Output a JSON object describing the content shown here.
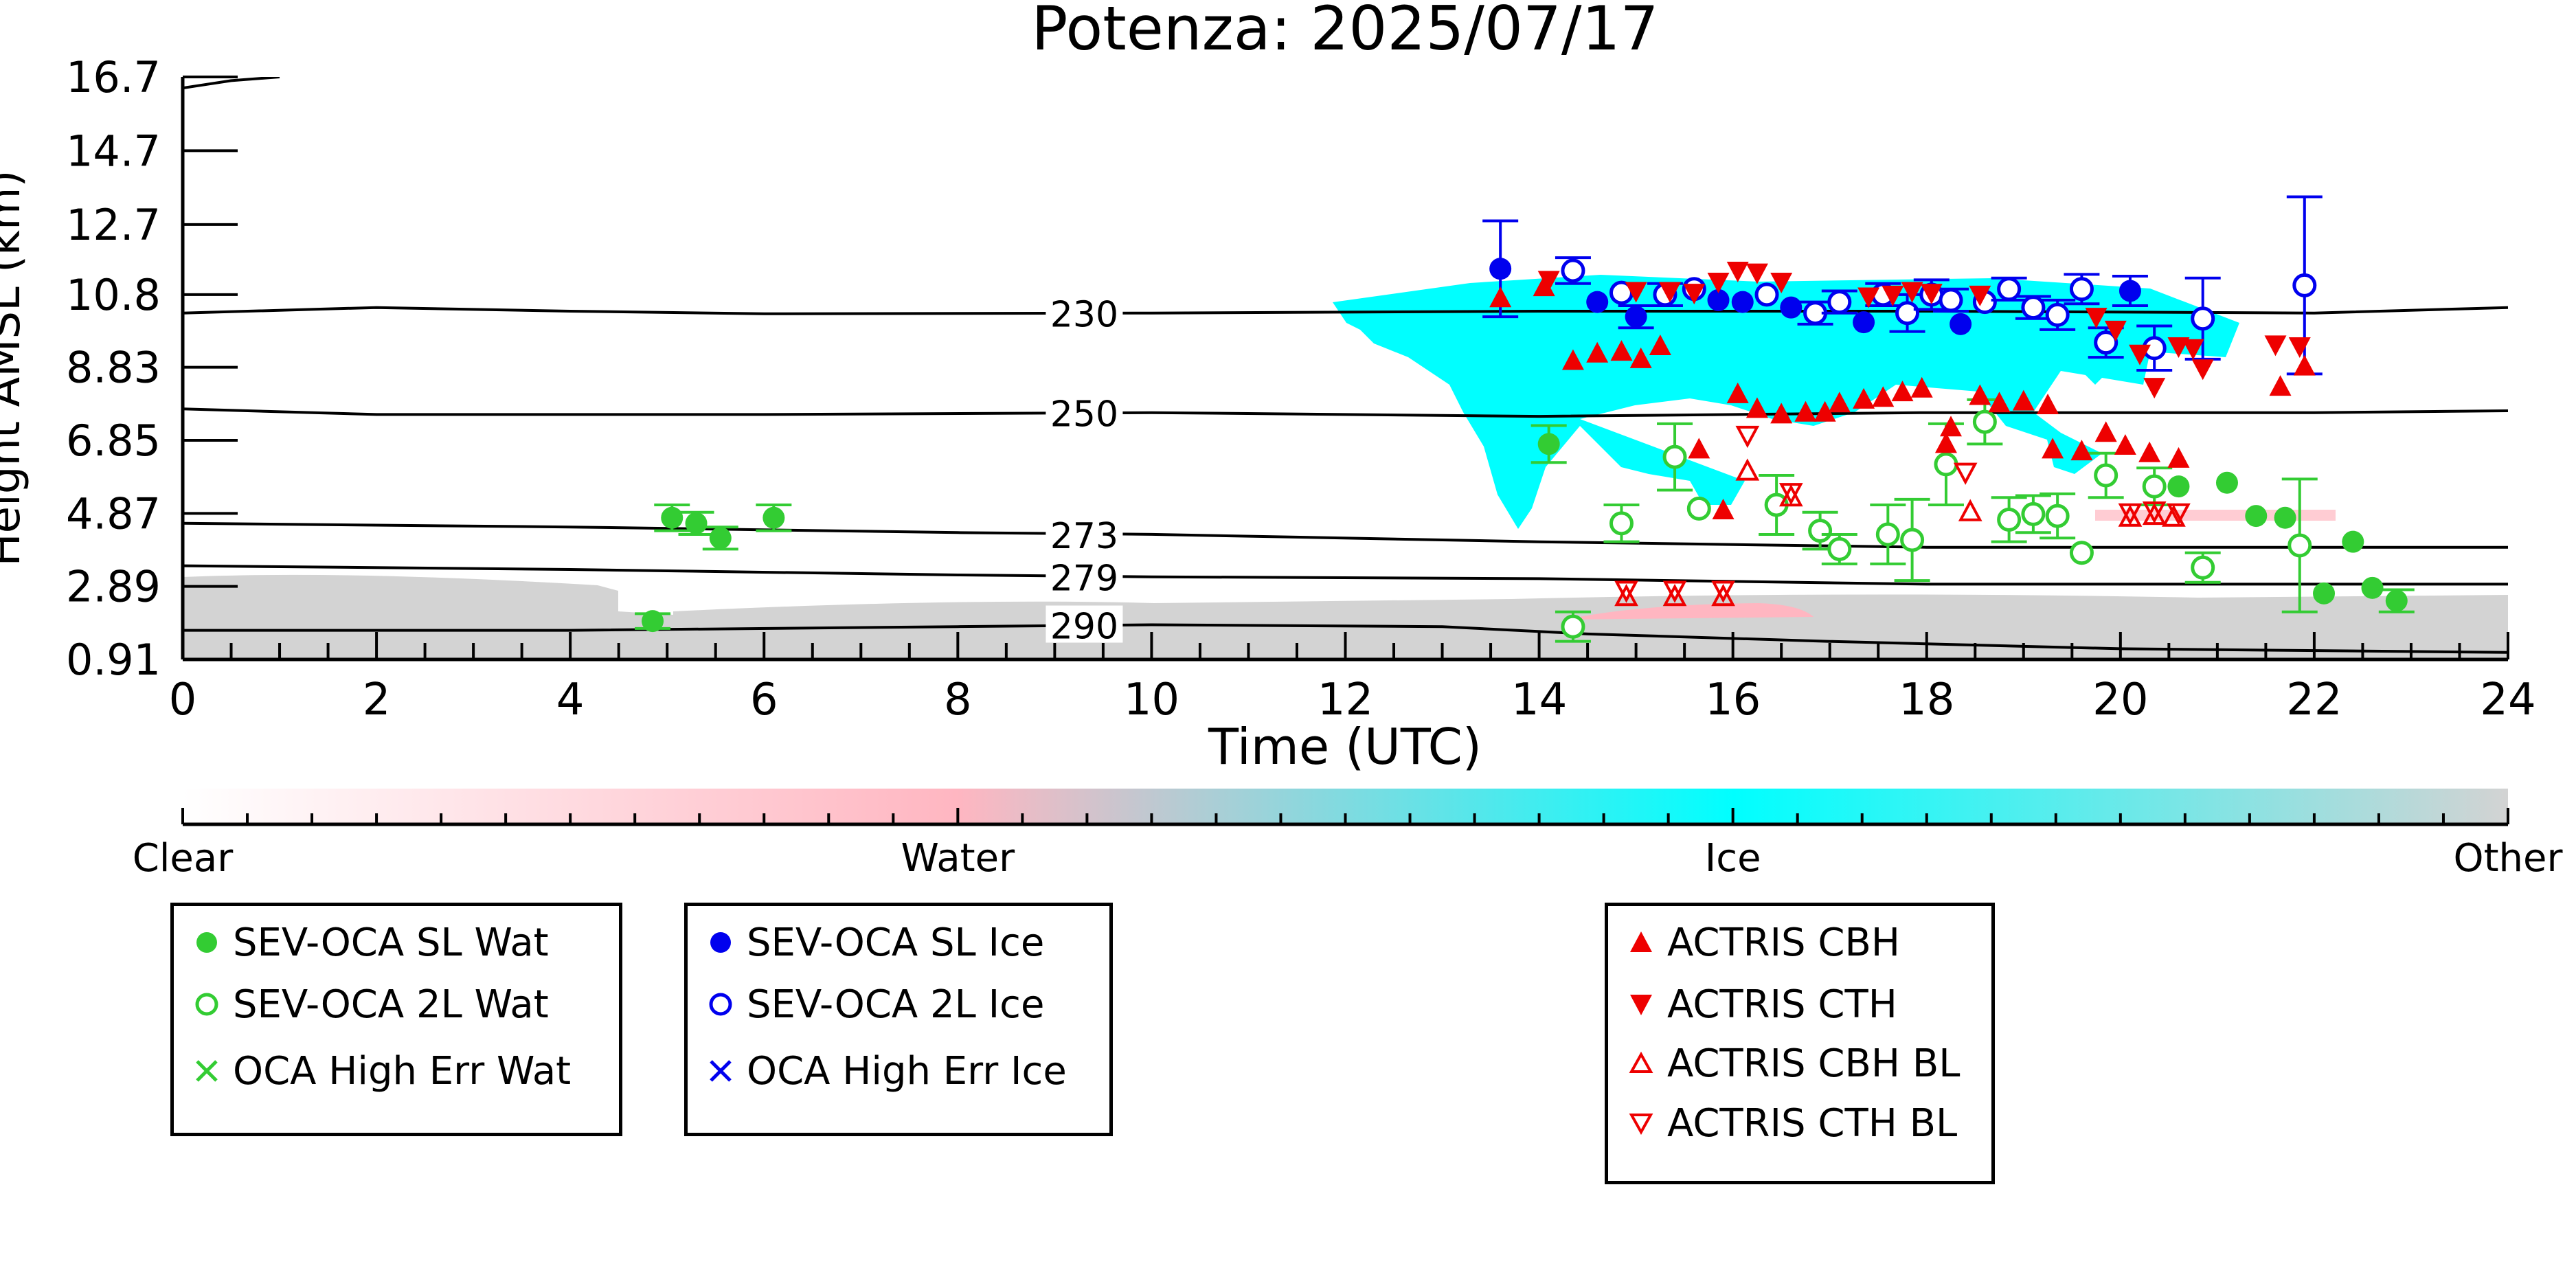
{
  "chart_data": {
    "type": "scatter",
    "title": "Potenza: 2025/07/17",
    "xlabel": "Time (UTC)",
    "ylabel": "Height AMSL (km)",
    "xlim": [
      0,
      24
    ],
    "ylim": [
      0.91,
      16.7
    ],
    "xticks": [
      "0",
      "2",
      "4",
      "6",
      "8",
      "10",
      "12",
      "14",
      "16",
      "18",
      "20",
      "22",
      "24"
    ],
    "yticks": [
      "16.7",
      "14.7",
      "12.7",
      "10.8",
      "8.83",
      "6.85",
      "4.87",
      "2.89",
      "0.91"
    ],
    "colorbar": {
      "labels": [
        "Clear",
        "Water",
        "Ice",
        "Other"
      ],
      "colors": [
        "#ffffff",
        "#ffb6c1",
        "#00ffff",
        "#d3d3d3"
      ]
    },
    "contours": [
      {
        "label": "230",
        "points": [
          [
            0,
            10.3
          ],
          [
            2,
            10.45
          ],
          [
            4,
            10.35
          ],
          [
            6,
            10.28
          ],
          [
            10,
            10.3
          ],
          [
            14,
            10.35
          ],
          [
            18,
            10.35
          ],
          [
            22,
            10.3
          ],
          [
            24,
            10.45
          ]
        ]
      },
      {
        "label": "250",
        "points": [
          [
            0,
            7.7
          ],
          [
            2,
            7.55
          ],
          [
            6,
            7.55
          ],
          [
            10,
            7.6
          ],
          [
            14,
            7.5
          ],
          [
            18,
            7.6
          ],
          [
            22,
            7.6
          ],
          [
            24,
            7.65
          ]
        ]
      },
      {
        "label": "273",
        "points": [
          [
            0,
            4.6
          ],
          [
            4,
            4.5
          ],
          [
            8,
            4.35
          ],
          [
            10,
            4.3
          ],
          [
            14,
            4.1
          ],
          [
            18,
            3.95
          ],
          [
            22,
            3.95
          ],
          [
            24,
            3.95
          ]
        ]
      },
      {
        "label": "279",
        "points": [
          [
            0,
            3.45
          ],
          [
            4,
            3.35
          ],
          [
            8,
            3.2
          ],
          [
            10,
            3.15
          ],
          [
            14,
            3.1
          ],
          [
            18,
            2.95
          ],
          [
            22,
            2.95
          ],
          [
            24,
            2.95
          ]
        ]
      },
      {
        "label": "290",
        "points": [
          [
            0,
            1.7
          ],
          [
            4,
            1.7
          ],
          [
            8,
            1.8
          ],
          [
            10,
            1.85
          ],
          [
            13,
            1.8
          ],
          [
            14.5,
            1.6
          ],
          [
            17,
            1.4
          ],
          [
            20,
            1.2
          ],
          [
            24,
            1.1
          ]
        ]
      },
      {
        "label": "",
        "points": [
          [
            0,
            16.4
          ],
          [
            0.5,
            16.6
          ],
          [
            1,
            16.7
          ]
        ]
      }
    ],
    "series": [
      {
        "name": "SEV-OCA SL Wat",
        "color": "#33cc33",
        "marker": "filled-circle",
        "points": [
          [
            4.85,
            1.95
          ],
          [
            5.05,
            4.75
          ],
          [
            5.3,
            4.6
          ],
          [
            5.55,
            4.2
          ],
          [
            6.1,
            4.75
          ],
          [
            14.1,
            6.75
          ],
          [
            20.6,
            5.6
          ],
          [
            21.1,
            5.7
          ],
          [
            21.4,
            4.8
          ],
          [
            21.7,
            4.75
          ],
          [
            22.1,
            2.7
          ],
          [
            22.4,
            4.1
          ],
          [
            22.6,
            2.85
          ],
          [
            22.85,
            2.5
          ]
        ],
        "errors": [
          0.2,
          0.35,
          0.3,
          0.3,
          0.35,
          0.5,
          0,
          0,
          0,
          0,
          0,
          0,
          0,
          0.3
        ]
      },
      {
        "name": "SEV-OCA 2L Wat",
        "color": "#33cc33",
        "marker": "open-circle",
        "points": [
          [
            14.35,
            1.8
          ],
          [
            14.85,
            4.6
          ],
          [
            15.4,
            6.4
          ],
          [
            15.65,
            5.0
          ],
          [
            16.45,
            5.1
          ],
          [
            16.9,
            4.4
          ],
          [
            17.1,
            3.9
          ],
          [
            17.6,
            4.3
          ],
          [
            17.85,
            4.15
          ],
          [
            18.2,
            6.2
          ],
          [
            18.6,
            7.35
          ],
          [
            18.85,
            4.7
          ],
          [
            19.1,
            4.85
          ],
          [
            19.35,
            4.8
          ],
          [
            19.6,
            3.8
          ],
          [
            19.85,
            5.9
          ],
          [
            20.35,
            5.6
          ],
          [
            20.85,
            3.4
          ],
          [
            21.85,
            4.0
          ]
        ],
        "errors": [
          0.4,
          0.5,
          0.9,
          0,
          0.8,
          0.5,
          0.4,
          0.8,
          1.1,
          1.1,
          0.6,
          0.6,
          0.5,
          0.6,
          0,
          0.6,
          0.5,
          0.4,
          1.8
        ]
      },
      {
        "name": "OCA High Err Wat",
        "color": "#33cc33",
        "marker": "x",
        "points": []
      },
      {
        "name": "SEV-OCA SL Ice",
        "color": "#0000ee",
        "marker": "filled-circle",
        "points": [
          [
            13.6,
            11.5
          ],
          [
            14.6,
            10.6
          ],
          [
            15.0,
            10.2
          ],
          [
            15.85,
            10.65
          ],
          [
            16.1,
            10.6
          ],
          [
            16.6,
            10.45
          ],
          [
            17.35,
            10.05
          ],
          [
            18.35,
            10.0
          ],
          [
            20.1,
            10.9
          ]
        ],
        "errors": [
          1.3,
          0,
          0.3,
          0,
          0,
          0,
          0,
          0,
          0.4
        ]
      },
      {
        "name": "SEV-OCA 2L Ice",
        "color": "#0000ee",
        "marker": "open-circle",
        "points": [
          [
            14.35,
            11.45
          ],
          [
            14.85,
            10.85
          ],
          [
            15.3,
            10.8
          ],
          [
            15.6,
            10.95
          ],
          [
            16.35,
            10.8
          ],
          [
            16.85,
            10.3
          ],
          [
            17.1,
            10.6
          ],
          [
            17.55,
            10.8
          ],
          [
            17.8,
            10.3
          ],
          [
            18.05,
            10.8
          ],
          [
            18.25,
            10.65
          ],
          [
            18.6,
            10.6
          ],
          [
            18.85,
            10.95
          ],
          [
            19.1,
            10.45
          ],
          [
            19.35,
            10.25
          ],
          [
            19.6,
            10.95
          ],
          [
            19.85,
            9.5
          ],
          [
            20.35,
            9.35
          ],
          [
            20.85,
            10.15
          ],
          [
            21.9,
            11.05
          ]
        ],
        "errors": [
          0.35,
          0,
          0.3,
          0,
          0,
          0.3,
          0.3,
          0.3,
          0.5,
          0.4,
          0.3,
          0,
          0.3,
          0.3,
          0.4,
          0.4,
          0.4,
          0.6,
          1.1,
          2.4
        ]
      },
      {
        "name": "OCA High Err Ice",
        "color": "#0000ee",
        "marker": "x",
        "points": []
      },
      {
        "name": "ACTRIS CBH",
        "color": "#ee0000",
        "marker": "filled-triangle-up",
        "points": [
          [
            13.6,
            10.7
          ],
          [
            14.05,
            11.0
          ],
          [
            14.35,
            9.0
          ],
          [
            14.6,
            9.2
          ],
          [
            14.85,
            9.25
          ],
          [
            15.05,
            9.05
          ],
          [
            15.25,
            9.4
          ],
          [
            15.65,
            6.6
          ],
          [
            15.9,
            4.95
          ],
          [
            16.05,
            8.1
          ],
          [
            16.25,
            7.7
          ],
          [
            16.5,
            7.55
          ],
          [
            16.75,
            7.6
          ],
          [
            16.95,
            7.6
          ],
          [
            17.1,
            7.85
          ],
          [
            17.35,
            7.95
          ],
          [
            17.55,
            8.0
          ],
          [
            17.75,
            8.15
          ],
          [
            17.95,
            8.25
          ],
          [
            18.2,
            6.75
          ],
          [
            18.25,
            7.2
          ],
          [
            18.55,
            8.05
          ],
          [
            18.75,
            7.85
          ],
          [
            19.0,
            7.9
          ],
          [
            19.25,
            7.8
          ],
          [
            19.3,
            6.6
          ],
          [
            19.6,
            6.55
          ],
          [
            19.85,
            7.05
          ],
          [
            20.05,
            6.7
          ],
          [
            20.3,
            6.5
          ],
          [
            20.6,
            6.35
          ],
          [
            21.65,
            8.3
          ],
          [
            21.9,
            8.85
          ]
        ]
      },
      {
        "name": "ACTRIS CTH",
        "color": "#ee0000",
        "marker": "filled-triangle-down",
        "points": [
          [
            14.1,
            11.2
          ],
          [
            15.0,
            10.9
          ],
          [
            15.35,
            10.9
          ],
          [
            15.6,
            10.85
          ],
          [
            15.85,
            11.15
          ],
          [
            16.05,
            11.45
          ],
          [
            16.25,
            11.4
          ],
          [
            16.5,
            11.15
          ],
          [
            17.4,
            10.75
          ],
          [
            17.65,
            10.8
          ],
          [
            17.85,
            10.9
          ],
          [
            18.05,
            10.85
          ],
          [
            18.55,
            10.8
          ],
          [
            19.75,
            10.2
          ],
          [
            19.95,
            9.85
          ],
          [
            20.2,
            9.2
          ],
          [
            20.6,
            9.4
          ],
          [
            20.85,
            8.8
          ],
          [
            21.6,
            9.45
          ],
          [
            21.85,
            9.4
          ],
          [
            20.35,
            8.3
          ],
          [
            20.75,
            9.35
          ]
        ]
      },
      {
        "name": "ACTRIS CBH BL",
        "color": "#ee0000",
        "marker": "open-triangle-up",
        "points": [
          [
            14.9,
            2.6
          ],
          [
            15.4,
            2.6
          ],
          [
            15.9,
            2.6
          ],
          [
            16.15,
            6.0
          ],
          [
            16.6,
            5.3
          ],
          [
            18.45,
            4.9
          ],
          [
            20.1,
            4.75
          ],
          [
            20.35,
            4.8
          ],
          [
            20.55,
            4.75
          ]
        ]
      },
      {
        "name": "ACTRIS CTH BL",
        "color": "#ee0000",
        "marker": "open-triangle-down",
        "points": [
          [
            14.9,
            2.8
          ],
          [
            15.4,
            2.8
          ],
          [
            15.9,
            2.8
          ],
          [
            16.15,
            7.0
          ],
          [
            16.6,
            5.45
          ],
          [
            18.4,
            6.0
          ],
          [
            20.1,
            4.9
          ],
          [
            20.35,
            4.95
          ],
          [
            20.6,
            4.9
          ]
        ]
      }
    ]
  },
  "legend_groups": [
    {
      "entries": [
        {
          "label": "SEV-OCA SL Wat",
          "marker": "filled-circle",
          "color": "#33cc33"
        },
        {
          "label": "SEV-OCA 2L Wat",
          "marker": "open-circle",
          "color": "#33cc33"
        },
        {
          "label": "OCA High Err Wat",
          "marker": "x",
          "color": "#33cc33"
        }
      ]
    },
    {
      "entries": [
        {
          "label": "SEV-OCA SL Ice",
          "marker": "filled-circle",
          "color": "#0000ee"
        },
        {
          "label": "SEV-OCA 2L Ice",
          "marker": "open-circle",
          "color": "#0000ee"
        },
        {
          "label": "OCA High Err Ice",
          "marker": "x",
          "color": "#0000ee"
        }
      ]
    },
    {
      "entries": [
        {
          "label": "ACTRIS CBH",
          "marker": "filled-triangle-up",
          "color": "#ee0000"
        },
        {
          "label": "ACTRIS CTH",
          "marker": "filled-triangle-down",
          "color": "#ee0000"
        },
        {
          "label": "ACTRIS CBH BL",
          "marker": "open-triangle-up",
          "color": "#ee0000"
        },
        {
          "label": "ACTRIS CTH BL",
          "marker": "open-triangle-down",
          "color": "#ee0000"
        }
      ]
    }
  ]
}
